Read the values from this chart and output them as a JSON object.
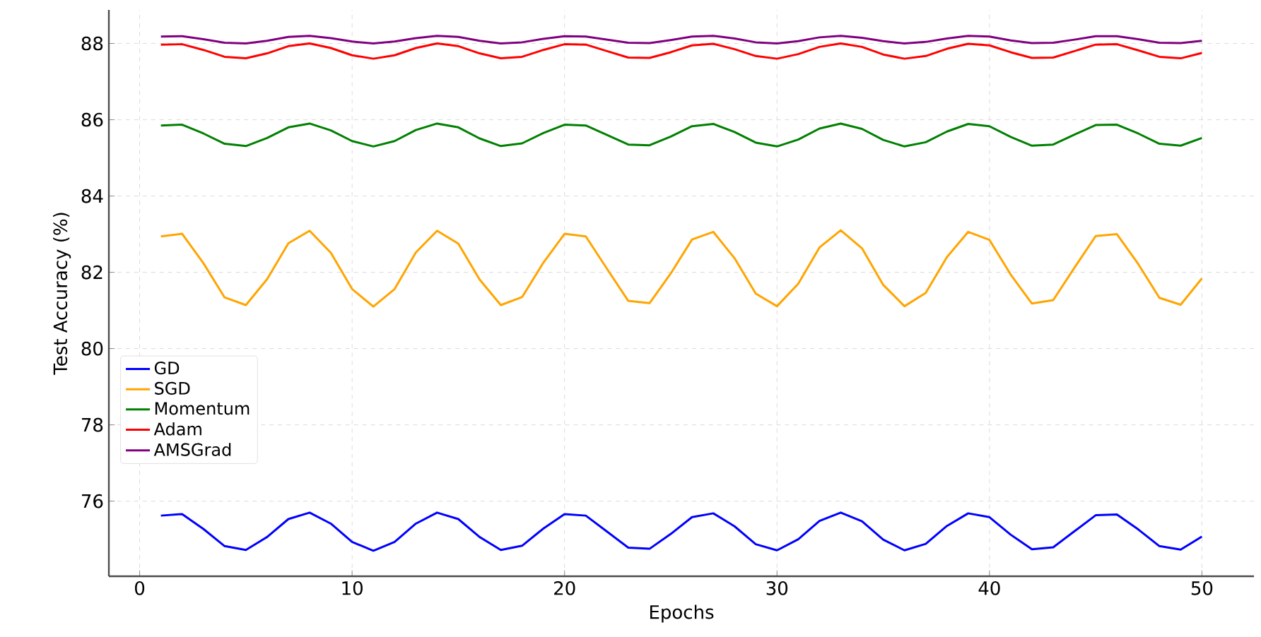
{
  "chart_data": {
    "type": "line",
    "xlabel": "Epochs",
    "ylabel": "Test Accuracy (%)",
    "x": [
      1,
      2,
      3,
      4,
      5,
      6,
      7,
      8,
      9,
      10,
      11,
      12,
      13,
      14,
      15,
      16,
      17,
      18,
      19,
      20,
      21,
      22,
      23,
      24,
      25,
      26,
      27,
      28,
      29,
      30,
      31,
      32,
      33,
      34,
      35,
      36,
      37,
      38,
      39,
      40,
      41,
      42,
      43,
      44,
      45,
      46,
      47,
      48,
      49,
      50
    ],
    "xlim": [
      -1.45,
      52.45
    ],
    "ylim": [
      74.03,
      88.88
    ],
    "xticks": [
      0,
      10,
      20,
      30,
      40,
      50
    ],
    "yticks": [
      76,
      78,
      80,
      82,
      84,
      86,
      88
    ],
    "grid": true,
    "legend": "left",
    "line_style": "solid",
    "series": [
      {
        "name": "GD",
        "color": "#0000ff",
        "values": [
          75.62,
          75.66,
          75.27,
          74.82,
          74.72,
          75.06,
          75.53,
          75.7,
          75.41,
          74.93,
          74.7,
          74.93,
          75.41,
          75.7,
          75.53,
          75.06,
          74.72,
          74.83,
          75.28,
          75.66,
          75.62,
          75.2,
          74.78,
          74.75,
          75.14,
          75.58,
          75.68,
          75.34,
          74.87,
          74.71,
          75.0,
          75.48,
          75.7,
          75.47,
          74.99,
          74.71,
          74.88,
          75.35,
          75.68,
          75.58,
          75.12,
          74.74,
          74.79,
          75.21,
          75.63,
          75.65,
          75.26,
          74.82,
          74.73,
          75.07
        ]
      },
      {
        "name": "SGD",
        "color": "#ffa500",
        "values": [
          82.94,
          83.01,
          82.24,
          81.34,
          81.14,
          81.82,
          82.76,
          83.09,
          82.51,
          81.56,
          81.1,
          81.56,
          82.52,
          83.09,
          82.75,
          81.81,
          81.14,
          81.35,
          82.25,
          83.01,
          82.94,
          82.09,
          81.25,
          81.19,
          81.97,
          82.86,
          83.06,
          82.37,
          81.44,
          81.11,
          81.7,
          82.65,
          83.1,
          82.63,
          81.67,
          81.11,
          81.46,
          82.4,
          83.06,
          82.85,
          81.94,
          81.18,
          81.27,
          82.12,
          82.95,
          83.0,
          82.22,
          81.33,
          81.15,
          81.84
        ]
      },
      {
        "name": "Momentum",
        "color": "#008000",
        "values": [
          85.85,
          85.87,
          85.64,
          85.37,
          85.31,
          85.52,
          85.8,
          85.9,
          85.72,
          85.44,
          85.3,
          85.44,
          85.73,
          85.9,
          85.8,
          85.51,
          85.31,
          85.38,
          85.65,
          85.87,
          85.85,
          85.6,
          85.35,
          85.33,
          85.56,
          85.83,
          85.89,
          85.68,
          85.4,
          85.3,
          85.48,
          85.77,
          85.9,
          85.76,
          85.47,
          85.3,
          85.41,
          85.69,
          85.89,
          85.83,
          85.55,
          85.32,
          85.35,
          85.61,
          85.86,
          85.87,
          85.64,
          85.37,
          85.32,
          85.52
        ]
      },
      {
        "name": "Adam",
        "color": "#ff0000",
        "values": [
          87.97,
          87.98,
          87.83,
          87.65,
          87.61,
          87.74,
          87.93,
          88.0,
          87.88,
          87.69,
          87.6,
          87.69,
          87.88,
          88.0,
          87.93,
          87.74,
          87.61,
          87.65,
          87.83,
          87.98,
          87.97,
          87.8,
          87.63,
          87.62,
          87.77,
          87.95,
          87.99,
          87.85,
          87.67,
          87.6,
          87.72,
          87.91,
          88.0,
          87.91,
          87.71,
          87.6,
          87.67,
          87.86,
          87.99,
          87.95,
          87.77,
          87.62,
          87.63,
          87.8,
          87.97,
          87.98,
          87.82,
          87.65,
          87.61,
          87.75
        ]
      },
      {
        "name": "AMSGrad",
        "color": "#800080",
        "values": [
          88.18,
          88.19,
          88.11,
          88.02,
          88.0,
          88.07,
          88.17,
          88.2,
          88.14,
          88.05,
          88.0,
          88.05,
          88.14,
          88.2,
          88.17,
          88.07,
          88.0,
          88.03,
          88.12,
          88.19,
          88.18,
          88.1,
          88.02,
          88.01,
          88.09,
          88.18,
          88.2,
          88.13,
          88.03,
          88.0,
          88.06,
          88.16,
          88.2,
          88.15,
          88.06,
          88.0,
          88.04,
          88.13,
          88.2,
          88.18,
          88.08,
          88.01,
          88.02,
          88.1,
          88.19,
          88.19,
          88.11,
          88.02,
          88.01,
          88.07
        ]
      }
    ]
  }
}
